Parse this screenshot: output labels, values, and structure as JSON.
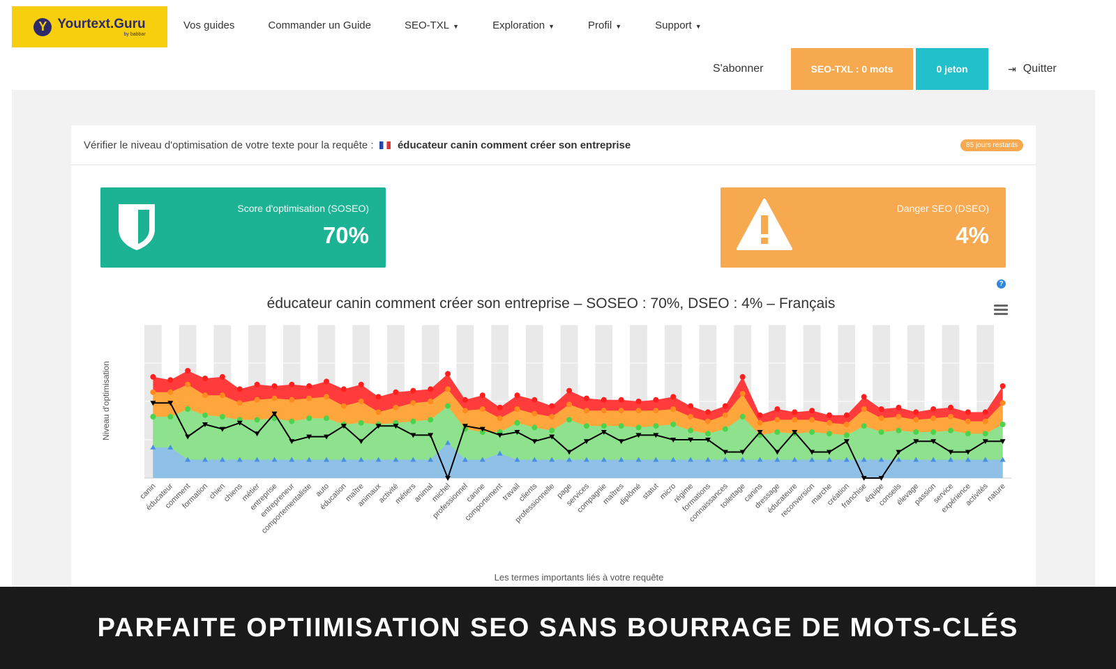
{
  "header": {
    "logo_brand": "Yourtext.Guru",
    "logo_by": "by babbar",
    "nav": [
      {
        "label": "Vos guides",
        "dropdown": false
      },
      {
        "label": "Commander un Guide",
        "dropdown": false
      },
      {
        "label": "SEO-TXL",
        "dropdown": true
      },
      {
        "label": "Exploration",
        "dropdown": true
      },
      {
        "label": "Profil",
        "dropdown": true
      },
      {
        "label": "Support",
        "dropdown": true
      }
    ],
    "subscribe": "S'abonner",
    "txl_button": "SEO-TXL : 0 mots",
    "jeton_button": "0 jeton",
    "quit": "Quitter",
    "colors": {
      "logo": "#f7cf0f",
      "txl": "#f6a94f",
      "jeton": "#22c0cb"
    }
  },
  "panel": {
    "heading_prefix": "Vérifier le niveau d'optimisation de votre texte pour la requête :",
    "query": "éducateur canin comment créer son entreprise",
    "days_badge": "85 jours restants"
  },
  "cards": {
    "soseo_label": "Score d'optimisation (SOSEO)",
    "soseo_value": "70%",
    "dseo_label": "Danger SEO (DSEO)",
    "dseo_value": "4%",
    "colors": {
      "soseo": "#1cb394",
      "dseo": "#f6a94f"
    }
  },
  "chart_data": {
    "type": "area",
    "title": "éducateur canin comment créer son entreprise – SOSEO : 70%, DSEO : 4% – Français",
    "ylabel": "Niveau d'optimisation",
    "xlabel": "Les termes importants liés à votre requête",
    "grid": true,
    "categories": [
      "canin",
      "éducateur",
      "comment",
      "formation",
      "chien",
      "chiens",
      "métier",
      "entreprise",
      "entrepreneur",
      "comportementaliste",
      "auto",
      "éducation",
      "maître",
      "animaux",
      "activité",
      "métiers",
      "animal",
      "michel",
      "professionnel",
      "canine",
      "comportement",
      "travail",
      "clients",
      "professionnelle",
      "page",
      "services",
      "compagnie",
      "maîtres",
      "diplômé",
      "statut",
      "micro",
      "régime",
      "formations",
      "connaissances",
      "toilettage",
      "canins",
      "dressage",
      "éducateure",
      "reconversion",
      "marche",
      "création",
      "franchise",
      "équipe",
      "conseils",
      "élevage",
      "passion",
      "service",
      "expérience",
      "activités",
      "nature"
    ],
    "series": [
      {
        "color": "#ff3b3b",
        "values": [
          66,
          64,
          70,
          65,
          66,
          58,
          61,
          60,
          61,
          60,
          63,
          58,
          61,
          53,
          56,
          57,
          58,
          68,
          51,
          54,
          46,
          54,
          51,
          47,
          57,
          52,
          51,
          51,
          50,
          51,
          53,
          47,
          43,
          47,
          66,
          41,
          45,
          43,
          44,
          41,
          41,
          53,
          45,
          46,
          43,
          45,
          46,
          43,
          43,
          60
        ]
      },
      {
        "color": "#ffa63d",
        "values": [
          56,
          56,
          61,
          54,
          54,
          49,
          51,
          52,
          51,
          52,
          53,
          47,
          50,
          43,
          46,
          49,
          50,
          58,
          44,
          45,
          39,
          45,
          42,
          40,
          48,
          44,
          44,
          44,
          44,
          44,
          45,
          40,
          37,
          41,
          55,
          36,
          38,
          38,
          38,
          36,
          35,
          45,
          39,
          40,
          38,
          39,
          40,
          37,
          37,
          49
        ]
      },
      {
        "color": "#8fe28d",
        "values": [
          40,
          40,
          45,
          41,
          40,
          38,
          38,
          39,
          37,
          39,
          39,
          35,
          36,
          35,
          36,
          37,
          38,
          47,
          32,
          30,
          30,
          36,
          33,
          31,
          38,
          34,
          34,
          34,
          33,
          34,
          35,
          31,
          29,
          32,
          40,
          28,
          30,
          29,
          30,
          29,
          28,
          34,
          30,
          31,
          30,
          30,
          31,
          29,
          29,
          35
        ]
      },
      {
        "color": "#8fbeef",
        "values": [
          20,
          20,
          12,
          12,
          12,
          12,
          12,
          12,
          12,
          12,
          12,
          12,
          12,
          12,
          12,
          12,
          12,
          23,
          12,
          12,
          16,
          12,
          12,
          12,
          12,
          12,
          12,
          12,
          12,
          12,
          12,
          12,
          12,
          12,
          12,
          12,
          12,
          12,
          12,
          12,
          12,
          12,
          12,
          12,
          12,
          12,
          12,
          12,
          12,
          12
        ]
      },
      {
        "color": "#000000",
        "values": [
          49,
          49,
          27,
          35,
          32,
          36,
          29,
          42,
          24,
          27,
          27,
          34,
          24,
          34,
          34,
          28,
          28,
          0,
          34,
          32,
          28,
          30,
          24,
          27,
          17,
          24,
          30,
          24,
          28,
          28,
          25,
          25,
          25,
          17,
          17,
          30,
          17,
          30,
          17,
          17,
          24,
          0,
          0,
          17,
          24,
          24,
          17,
          17,
          24,
          24
        ]
      }
    ]
  },
  "footer": {
    "banner_text": "PARFAITE OPTIIMISATION SEO SANS BOURRAGE DE MOTS-CLÉS"
  }
}
